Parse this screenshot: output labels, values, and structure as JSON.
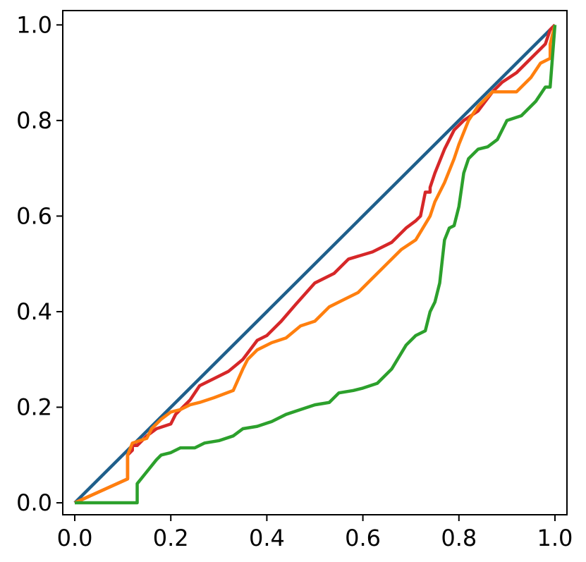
{
  "chart_data": {
    "type": "line",
    "title": "",
    "xlabel": "",
    "ylabel": "",
    "xlim": [
      -0.025,
      1.025
    ],
    "ylim": [
      -0.025,
      1.03
    ],
    "xticks": [
      0.0,
      0.2,
      0.4,
      0.6,
      0.8,
      1.0
    ],
    "yticks": [
      0.0,
      0.2,
      0.4,
      0.6,
      0.8,
      1.0
    ],
    "xtick_labels": [
      "0.0",
      "0.2",
      "0.4",
      "0.6",
      "0.8",
      "1.0"
    ],
    "ytick_labels": [
      "0.0",
      "0.2",
      "0.4",
      "0.6",
      "0.8",
      "1.0"
    ],
    "grid": false,
    "legend": false,
    "series": [
      {
        "color": "#1f5f8b",
        "x": [
          0.0,
          1.0
        ],
        "y": [
          0.0,
          1.0
        ]
      },
      {
        "color": "#d62728",
        "x": [
          0.0,
          0.11,
          0.11,
          0.12,
          0.12,
          0.13,
          0.15,
          0.17,
          0.2,
          0.21,
          0.22,
          0.24,
          0.26,
          0.29,
          0.32,
          0.35,
          0.38,
          0.4,
          0.43,
          0.46,
          0.5,
          0.54,
          0.57,
          0.62,
          0.66,
          0.69,
          0.71,
          0.72,
          0.73,
          0.74,
          0.74,
          0.75,
          0.77,
          0.79,
          0.81,
          0.84,
          0.87,
          0.89,
          0.92,
          0.95,
          0.97,
          0.98,
          0.99,
          1.0
        ],
        "y": [
          0.0,
          0.05,
          0.1,
          0.11,
          0.12,
          0.12,
          0.14,
          0.155,
          0.165,
          0.185,
          0.195,
          0.215,
          0.245,
          0.26,
          0.275,
          0.3,
          0.34,
          0.35,
          0.38,
          0.415,
          0.46,
          0.48,
          0.51,
          0.525,
          0.545,
          0.575,
          0.59,
          0.6,
          0.65,
          0.65,
          0.66,
          0.69,
          0.74,
          0.78,
          0.8,
          0.82,
          0.86,
          0.88,
          0.9,
          0.93,
          0.95,
          0.96,
          0.99,
          1.0
        ]
      },
      {
        "color": "#ff7f0e",
        "x": [
          0.0,
          0.11,
          0.11,
          0.12,
          0.15,
          0.16,
          0.17,
          0.18,
          0.2,
          0.22,
          0.24,
          0.26,
          0.29,
          0.33,
          0.35,
          0.36,
          0.38,
          0.41,
          0.44,
          0.47,
          0.5,
          0.53,
          0.56,
          0.59,
          0.62,
          0.65,
          0.68,
          0.71,
          0.74,
          0.75,
          0.77,
          0.79,
          0.8,
          0.82,
          0.84,
          0.87,
          0.9,
          0.92,
          0.95,
          0.97,
          0.99,
          0.99,
          1.0
        ],
        "y": [
          0.0,
          0.05,
          0.1,
          0.125,
          0.135,
          0.155,
          0.165,
          0.175,
          0.19,
          0.195,
          0.205,
          0.21,
          0.22,
          0.235,
          0.28,
          0.3,
          0.32,
          0.335,
          0.345,
          0.37,
          0.38,
          0.41,
          0.425,
          0.44,
          0.47,
          0.5,
          0.53,
          0.55,
          0.6,
          0.63,
          0.67,
          0.72,
          0.75,
          0.8,
          0.83,
          0.86,
          0.86,
          0.86,
          0.89,
          0.92,
          0.93,
          0.96,
          1.0
        ]
      },
      {
        "color": "#2ca02c",
        "x": [
          0.0,
          0.13,
          0.13,
          0.15,
          0.17,
          0.18,
          0.2,
          0.22,
          0.25,
          0.27,
          0.3,
          0.33,
          0.35,
          0.38,
          0.41,
          0.44,
          0.47,
          0.5,
          0.53,
          0.55,
          0.58,
          0.6,
          0.63,
          0.66,
          0.69,
          0.71,
          0.71,
          0.73,
          0.74,
          0.75,
          0.76,
          0.77,
          0.78,
          0.79,
          0.8,
          0.81,
          0.82,
          0.84,
          0.86,
          0.88,
          0.9,
          0.93,
          0.96,
          0.98,
          0.99,
          1.0
        ],
        "y": [
          0.0,
          0.0,
          0.04,
          0.065,
          0.09,
          0.1,
          0.105,
          0.115,
          0.115,
          0.125,
          0.13,
          0.14,
          0.155,
          0.16,
          0.17,
          0.185,
          0.195,
          0.205,
          0.21,
          0.23,
          0.235,
          0.24,
          0.25,
          0.28,
          0.33,
          0.35,
          0.35,
          0.36,
          0.4,
          0.42,
          0.46,
          0.55,
          0.575,
          0.58,
          0.62,
          0.69,
          0.72,
          0.74,
          0.745,
          0.76,
          0.8,
          0.81,
          0.84,
          0.87,
          0.87,
          1.0
        ]
      }
    ]
  }
}
